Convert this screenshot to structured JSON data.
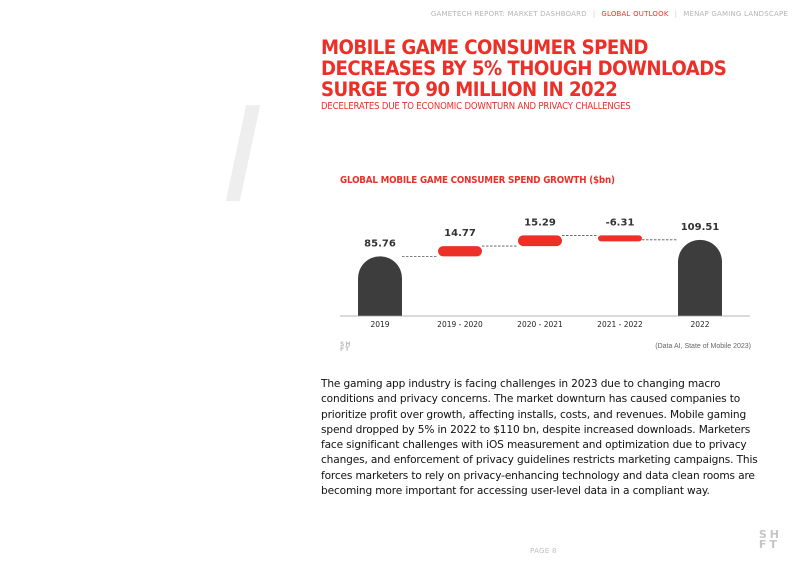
{
  "nav": {
    "items": [
      {
        "label": "GAMETECH REPORT:  MARKET DASHBOARD",
        "active": false
      },
      {
        "label": "GLOBAL OUTLOOK",
        "active": true
      },
      {
        "label": "MENAP GAMING LANDSCAPE",
        "active": false
      }
    ],
    "separator": "|"
  },
  "heading": {
    "title": "MOBILE GAME CONSUMER SPEND DECREASES BY 5% THOUGH DOWNLOADS SURGE TO 90 MILLION IN 2022",
    "subtitle": "DECELERATES DUE TO ECONOMIC DOWNTURN AND PRIVACY CHALLENGES"
  },
  "chart_data": {
    "type": "bar",
    "subtype": "waterfall",
    "title": "GLOBAL MOBILE GAME CONSUMER SPEND GROWTH ($bn)",
    "categories": [
      "2019",
      "2019 - 2020",
      "2020 - 2021",
      "2021  - 2022",
      "2022"
    ],
    "values": [
      85.76,
      14.77,
      15.29,
      -6.31,
      109.51
    ],
    "value_labels": [
      "85.76",
      "14.77",
      "15.29",
      "-6.31",
      "109.51"
    ],
    "kinds": [
      "total",
      "delta",
      "delta",
      "delta",
      "total"
    ],
    "ylim": [
      0,
      115
    ],
    "colors": {
      "total": "#3d3d3d",
      "delta": "#ec3028",
      "connector": "#555555",
      "axis": "#9e9e9e"
    }
  },
  "source": "(Data AI, State of Mobile 2023)",
  "logo": {
    "line1": "SH",
    "line2": "FT"
  },
  "body": "The gaming app industry is facing challenges in 2023 due to changing macro conditions and privacy concerns. The market downturn has caused companies to prioritize profit over growth, affecting installs, costs, and revenues. Mobile gaming spend dropped by 5% in 2022 to $110 bn, despite increased downloads. Marketers face significant challenges with iOS measurement and optimization due to privacy changes, and enforcement of privacy guidelines restricts marketing campaigns. This forces marketers to rely on privacy-enhancing technology and data clean rooms are becoming more important for accessing user-level data in a compliant way.",
  "page": "PAGE 8"
}
